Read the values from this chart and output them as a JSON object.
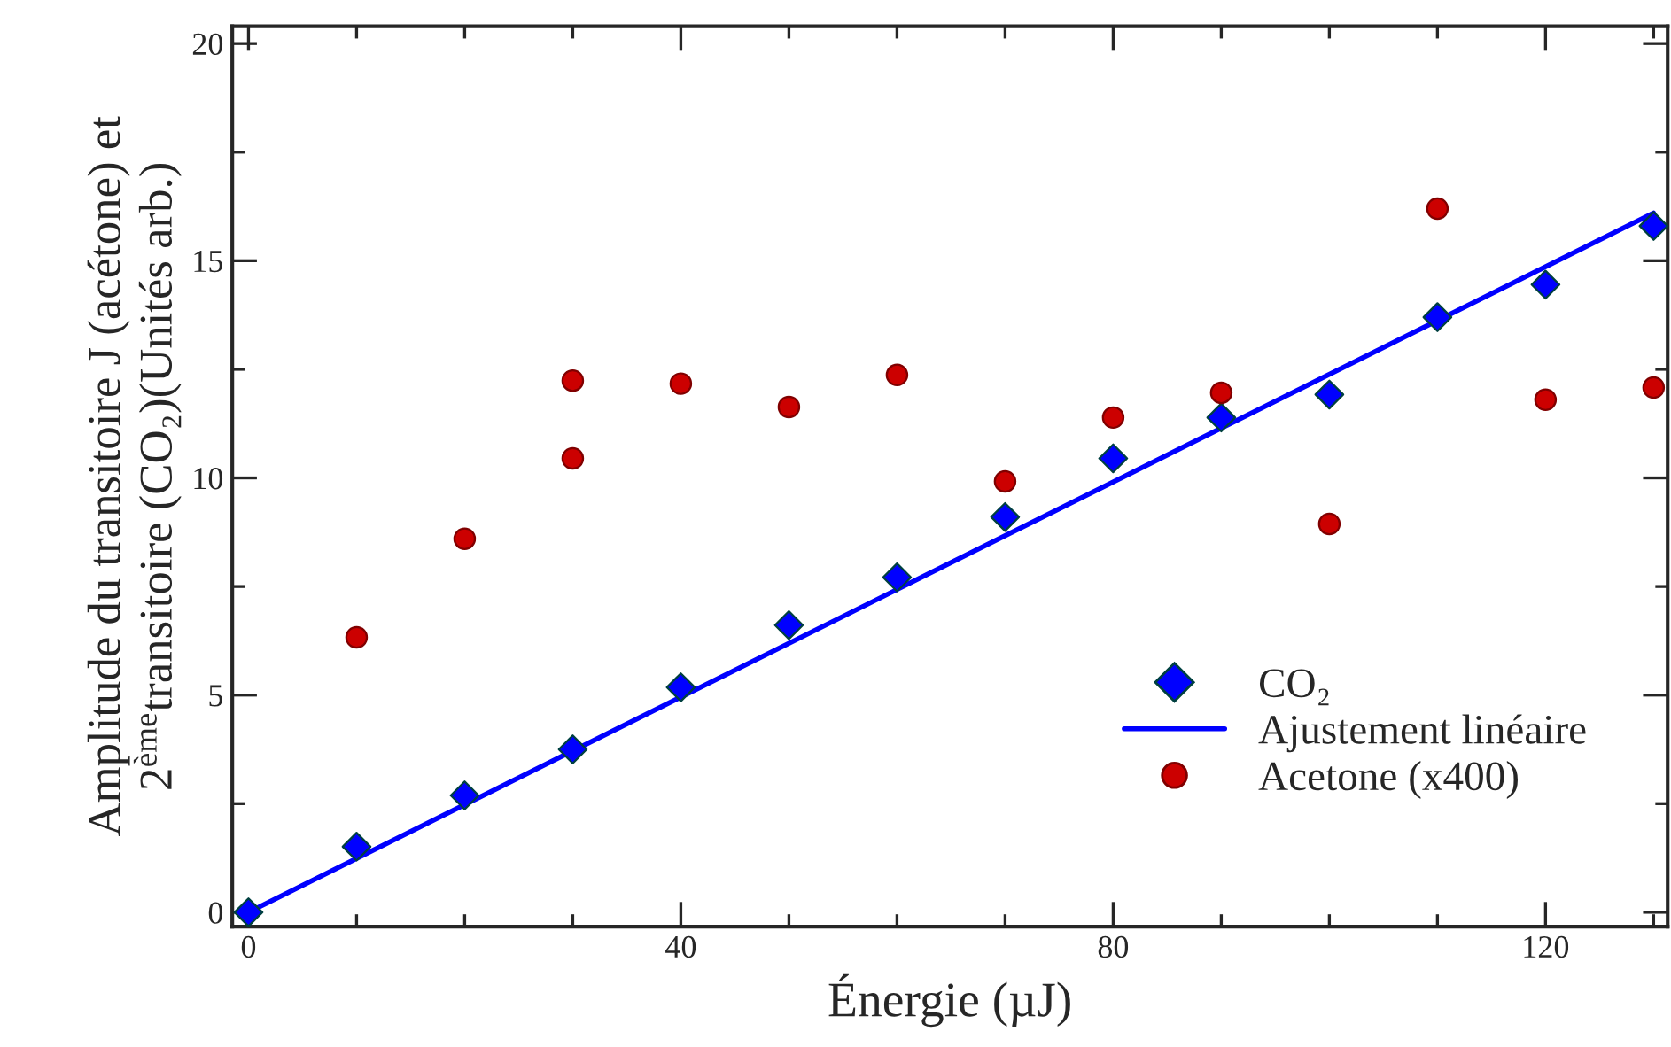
{
  "chart_data": {
    "type": "scatter",
    "xlabel": "Énergie (µJ)",
    "ylabel": "Amplitude du transitoire J (acétone) et\n2$^{ème}$transitoire (CO₂)(Unités arb.)",
    "xlim": [
      -1.5,
      131.3
    ],
    "ylim": [
      -0.33,
      20.4
    ],
    "xticks": [
      0,
      {
        "value": 10,
        "label": null
      },
      {
        "value": 20,
        "label": null
      },
      {
        "value": 30,
        "label": null
      },
      40,
      {
        "value": 50,
        "label": null
      },
      {
        "value": 60,
        "label": null
      },
      {
        "value": 70,
        "label": null
      },
      80,
      {
        "value": 90,
        "label": null
      },
      {
        "value": 100,
        "label": null
      },
      {
        "value": 110,
        "label": null
      },
      120,
      {
        "value": 130,
        "label": null
      }
    ],
    "yticks": [
      0,
      {
        "value": 2.5,
        "label": null
      },
      5,
      {
        "value": 7.5,
        "label": null
      },
      10,
      {
        "value": 12.5,
        "label": null
      },
      15,
      {
        "value": 17.5,
        "label": null
      },
      20
    ],
    "grid": false,
    "legend": "bottom right",
    "series": [
      {
        "name": "CO₂",
        "marker": "diamond",
        "color": "#0000ff",
        "x": [
          0,
          10,
          20,
          30,
          40,
          50,
          60,
          70,
          80,
          90,
          100,
          110,
          120,
          130
        ],
        "values": [
          0,
          1.51,
          2.69,
          3.75,
          5.18,
          6.61,
          7.71,
          9.1,
          10.45,
          11.39,
          11.92,
          13.7,
          14.45,
          15.8
        ]
      },
      {
        "name": "Ajustement linéaire",
        "type": "line",
        "line_style": "solid",
        "color": "#0000ff",
        "x": [
          0,
          130
        ],
        "values": [
          0,
          16.1
        ]
      },
      {
        "name": "Acetone (x400)",
        "marker": "circle",
        "color": "#cc0000",
        "x": [
          10,
          20,
          30,
          30,
          40,
          50,
          60,
          70,
          80,
          90,
          100,
          110,
          120,
          130
        ],
        "values": [
          6.33,
          8.6,
          12.24,
          10.45,
          12.17,
          11.63,
          12.37,
          9.92,
          11.39,
          11.96,
          8.94,
          16.2,
          11.8,
          12.08
        ]
      }
    ]
  }
}
